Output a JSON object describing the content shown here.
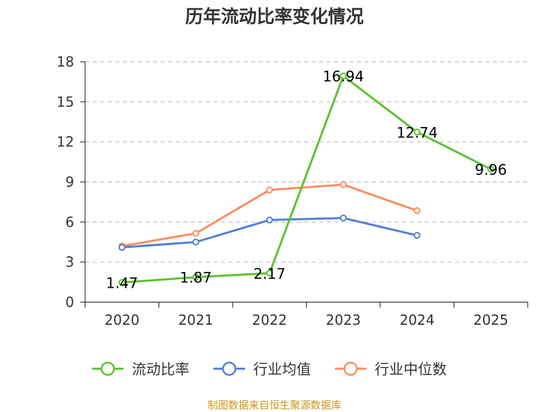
{
  "chart_data": {
    "type": "line",
    "title": "历年流动比率变化情况",
    "categories": [
      "2020",
      "2021",
      "2022",
      "2023",
      "2024",
      "2025"
    ],
    "ylim": [
      0,
      18
    ],
    "yticks": [
      0,
      3,
      6,
      9,
      12,
      15,
      18
    ],
    "grid": true,
    "legend_position": "bottom",
    "series": [
      {
        "name": "流动比率",
        "color": "#5cc12e",
        "values": [
          1.47,
          1.87,
          2.17,
          16.94,
          12.74,
          9.96
        ],
        "labels": [
          "1.47",
          "1.87",
          "2.17",
          "16.94",
          "12.74",
          "9.96"
        ]
      },
      {
        "name": "行业均值",
        "color": "#4f7fd9",
        "values": [
          4.1,
          4.5,
          6.15,
          6.3,
          5.0,
          null
        ]
      },
      {
        "name": "行业中位数",
        "color": "#f98e5e",
        "values": [
          4.2,
          5.15,
          8.4,
          8.8,
          6.85,
          null
        ]
      }
    ],
    "source": "制图数据来自恒生聚源数据库"
  }
}
